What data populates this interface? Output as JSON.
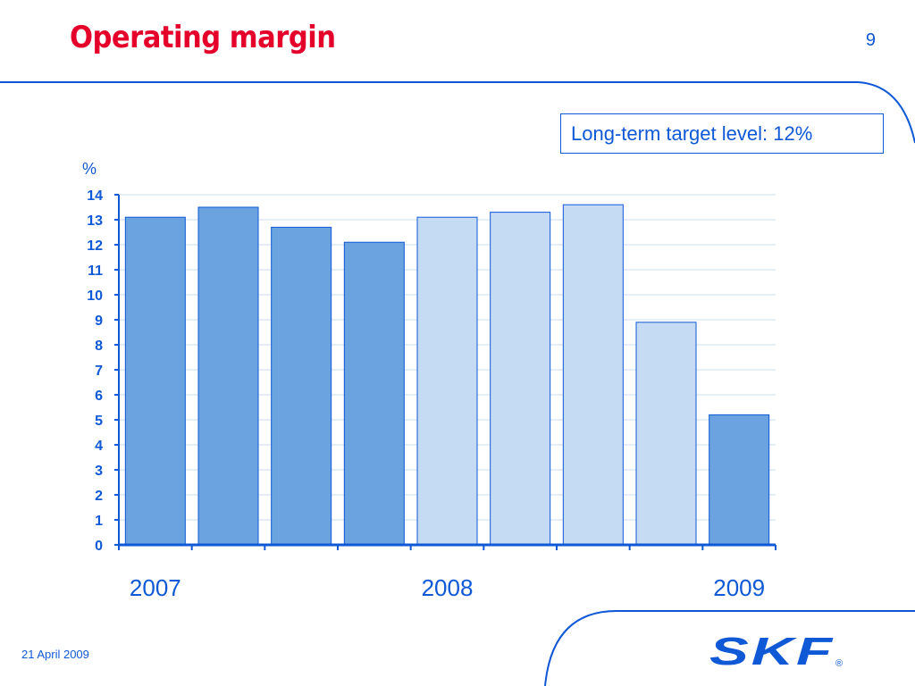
{
  "slide": {
    "title": "Operating margin",
    "page_number": "9",
    "target_note": "Long-term target level: 12%",
    "date": "21 April 2009",
    "logo_text": "SKF",
    "logo_mark": "®"
  },
  "colors": {
    "title_red": "#e4002b",
    "brand_blue": "#0f58d6",
    "bar_dark": "#6aa3e0",
    "bar_light": "#c5daf3",
    "gridline": "#c8ddf3"
  },
  "chart_data": {
    "type": "bar",
    "ylabel": "%",
    "ylim": [
      0,
      14
    ],
    "yticks": [
      0,
      1,
      2,
      3,
      4,
      5,
      6,
      7,
      8,
      9,
      10,
      11,
      12,
      13,
      14
    ],
    "grid": true,
    "year_labels": [
      "2007",
      "2008",
      "2009"
    ],
    "year_label_bars": [
      0,
      4,
      8
    ],
    "values": [
      13.1,
      13.5,
      12.7,
      12.1,
      13.1,
      13.3,
      13.6,
      8.9,
      5.2
    ],
    "shades": [
      "dark",
      "dark",
      "dark",
      "dark",
      "light",
      "light",
      "light",
      "light",
      "dark"
    ]
  }
}
